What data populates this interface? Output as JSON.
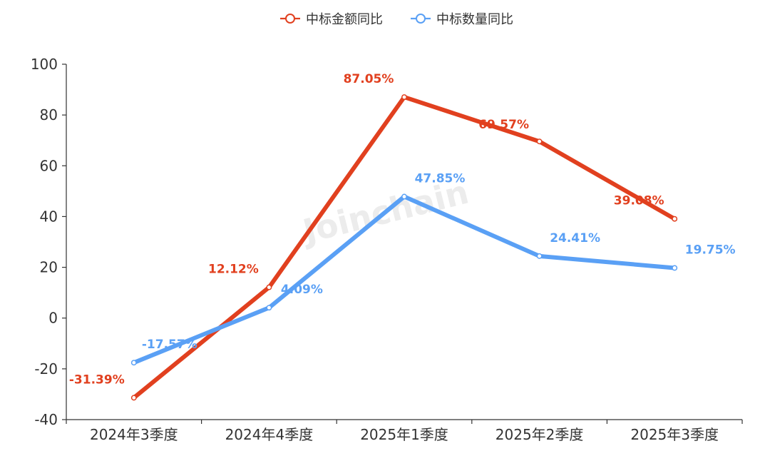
{
  "watermark": "Joinchain",
  "chart_data": {
    "type": "line",
    "categories": [
      "2024年3季度",
      "2024年4季度",
      "2025年1季度",
      "2025年2季度",
      "2025年3季度"
    ],
    "ylim": [
      -40,
      100
    ],
    "yticks": [
      -40,
      -20,
      0,
      20,
      40,
      60,
      80,
      100
    ],
    "grid": false,
    "legend_position": "top-center",
    "series": [
      {
        "name": "中标金额同比",
        "color": "#e1401f",
        "values": [
          -31.39,
          12.12,
          87.05,
          69.57,
          39.08
        ],
        "labels": [
          "-31.39%",
          "12.12%",
          "87.05%",
          "69.57%",
          "39.08%"
        ]
      },
      {
        "name": "中标数量同比",
        "color": "#5aa0f5",
        "values": [
          -17.57,
          4.09,
          47.85,
          24.41,
          19.75
        ],
        "labels": [
          "-17.57%",
          "4.09%",
          "47.85%",
          "24.41%",
          "19.75%"
        ]
      }
    ]
  }
}
